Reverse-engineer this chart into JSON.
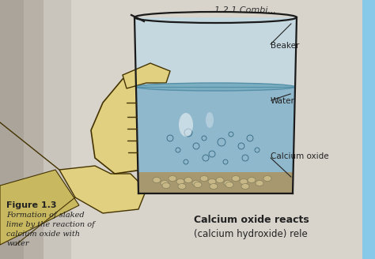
{
  "page_bg_left": "#c8c4be",
  "page_bg_right": "#ddd8d0",
  "page_bg_main": "#d8d4cc",
  "beaker_outline": "#1a1a1a",
  "beaker_fill_top": "#c8d8e0",
  "water_fill": "#90b8cc",
  "water_surface_color": "#6898b0",
  "calcium_oxide_color": "#a89870",
  "hand_color": "#e0d080",
  "hand_outline": "#443300",
  "label_beaker": "Beaker",
  "label_water": "Water",
  "label_calcium": "Calcium oxide",
  "caption_title": "Figure 1.3",
  "caption_line1": "Formation of slaked",
  "caption_line2": "lime by the reaction of",
  "caption_line3": "calcium oxide with",
  "caption_line4": "water",
  "right_text1": "Calcium oxide reacts",
  "right_text2": "(calcium hydroxide) rele",
  "title_text": "1.2.1 Combi...",
  "label_color": "#222222",
  "font_size_labels": 7.5,
  "font_size_caption_title": 8,
  "font_size_caption": 7,
  "font_size_right": 9,
  "right_strip_color": "#88c8e8"
}
